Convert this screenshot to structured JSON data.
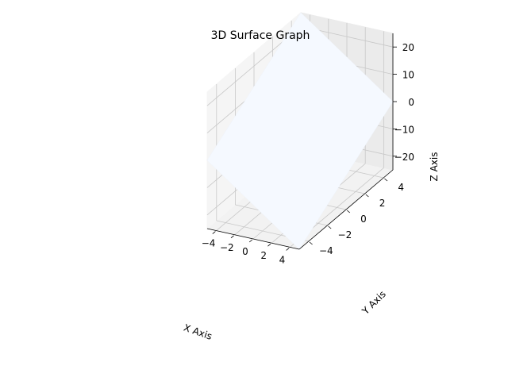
{
  "chart_data": {
    "type": "surface",
    "title": "3D Surface Graph",
    "xlabel": "X Axis",
    "ylabel": "Y Axis",
    "zlabel": "Z Axis",
    "xlim": [
      -5,
      5
    ],
    "ylim": [
      -5,
      5
    ],
    "zlim": [
      -25,
      25
    ],
    "x_ticks": [
      -4,
      -2,
      0,
      2,
      4
    ],
    "y_ticks": [
      -4,
      -2,
      0,
      2,
      4
    ],
    "z_ticks": [
      -20,
      -10,
      0,
      10,
      20
    ],
    "grid": true,
    "colors": {
      "surface": "#f5f9ff",
      "pane": "#f2f2f2",
      "grid": "#c8c8c8",
      "axis": "#000000"
    },
    "surface": {
      "x": [
        -5,
        5
      ],
      "y": [
        -5,
        5
      ],
      "z": [
        [
          0,
          25
        ],
        [
          -25,
          0
        ]
      ]
    }
  }
}
